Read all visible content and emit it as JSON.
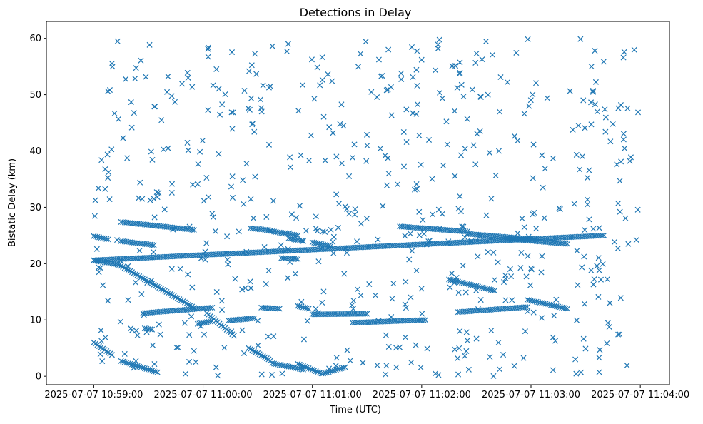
{
  "chart_data": {
    "type": "scatter",
    "title": "Detections in Delay",
    "xlabel": "Time (UTC)",
    "ylabel": "Bistatic Delay (km)",
    "marker": "x",
    "color": "#1f77b4",
    "grid": false,
    "legend": "none",
    "x_unit": "seconds",
    "x_ticks": [
      {
        "t": 0,
        "label": "2025-07-07 10:59:00"
      },
      {
        "t": 60,
        "label": "2025-07-07 11:00:00"
      },
      {
        "t": 120,
        "label": "2025-07-07 11:01:00"
      },
      {
        "t": 180,
        "label": "2025-07-07 11:02:00"
      },
      {
        "t": 240,
        "label": "2025-07-07 11:03:00"
      },
      {
        "t": 300,
        "label": "2025-07-07 11:04:00"
      }
    ],
    "xlim": [
      -26,
      316
    ],
    "ylim": [
      -1.5,
      63
    ],
    "y_ticks": [
      0,
      10,
      20,
      30,
      40,
      50,
      60
    ],
    "tracks": [
      {
        "t0": 0,
        "y0": 24.9,
        "t1": 8,
        "y1": 24.3
      },
      {
        "t0": 0,
        "y0": 20.6,
        "t1": 280,
        "y1": 25.0
      },
      {
        "t0": 15,
        "y0": 27.4,
        "t1": 55,
        "y1": 26.0
      },
      {
        "t0": 15,
        "y0": 24.0,
        "t1": 33,
        "y1": 23.3
      },
      {
        "t0": 0,
        "y0": 20.6,
        "t1": 14,
        "y1": 19.8
      },
      {
        "t0": 14,
        "y0": 19.8,
        "t1": 55,
        "y1": 12.2
      },
      {
        "t0": 0,
        "y0": 6.0,
        "t1": 10,
        "y1": 3.8
      },
      {
        "t0": 15,
        "y0": 2.7,
        "t1": 35,
        "y1": 0.7
      },
      {
        "t0": 27,
        "y0": 11.2,
        "t1": 65,
        "y1": 12.2
      },
      {
        "t0": 28,
        "y0": 8.5,
        "t1": 32,
        "y1": 8.3
      },
      {
        "t0": 57,
        "y0": 9.3,
        "t1": 65,
        "y1": 9.8
      },
      {
        "t0": 62,
        "y0": 11.2,
        "t1": 77,
        "y1": 7.2
      },
      {
        "t0": 74,
        "y0": 9.9,
        "t1": 88,
        "y1": 10.3
      },
      {
        "t0": 86,
        "y0": 26.3,
        "t1": 97,
        "y1": 25.9
      },
      {
        "t0": 97,
        "y0": 25.8,
        "t1": 112,
        "y1": 25.0
      },
      {
        "t0": 107,
        "y0": 24.5,
        "t1": 115,
        "y1": 24.0
      },
      {
        "t0": 85,
        "y0": 5.0,
        "t1": 96,
        "y1": 3.0
      },
      {
        "t0": 98,
        "y0": 2.3,
        "t1": 115,
        "y1": 1.2
      },
      {
        "t0": 112,
        "y0": 2.2,
        "t1": 125,
        "y1": 0.5
      },
      {
        "t0": 126,
        "y0": 0.5,
        "t1": 138,
        "y1": 1.6
      },
      {
        "t0": 92,
        "y0": 12.2,
        "t1": 102,
        "y1": 12.0
      },
      {
        "t0": 103,
        "y0": 21.0,
        "t1": 112,
        "y1": 20.8
      },
      {
        "t0": 120,
        "y0": 23.8,
        "t1": 130,
        "y1": 23.1
      },
      {
        "t0": 112,
        "y0": 12.5,
        "t1": 118,
        "y1": 12.0
      },
      {
        "t0": 120,
        "y0": 11.0,
        "t1": 150,
        "y1": 11.1
      },
      {
        "t0": 142,
        "y0": 9.5,
        "t1": 182,
        "y1": 10.0
      },
      {
        "t0": 168,
        "y0": 26.6,
        "t1": 205,
        "y1": 25.7
      },
      {
        "t0": 205,
        "y0": 25.3,
        "t1": 242,
        "y1": 24.3
      },
      {
        "t0": 225,
        "y0": 24.5,
        "t1": 260,
        "y1": 23.5
      },
      {
        "t0": 200,
        "y0": 11.4,
        "t1": 238,
        "y1": 12.3
      },
      {
        "t0": 238,
        "y0": 13.6,
        "t1": 260,
        "y1": 12.0
      },
      {
        "t0": 195,
        "y0": 17.2,
        "t1": 220,
        "y1": 15.2
      }
    ],
    "track_spacing_s": 1.0
  }
}
